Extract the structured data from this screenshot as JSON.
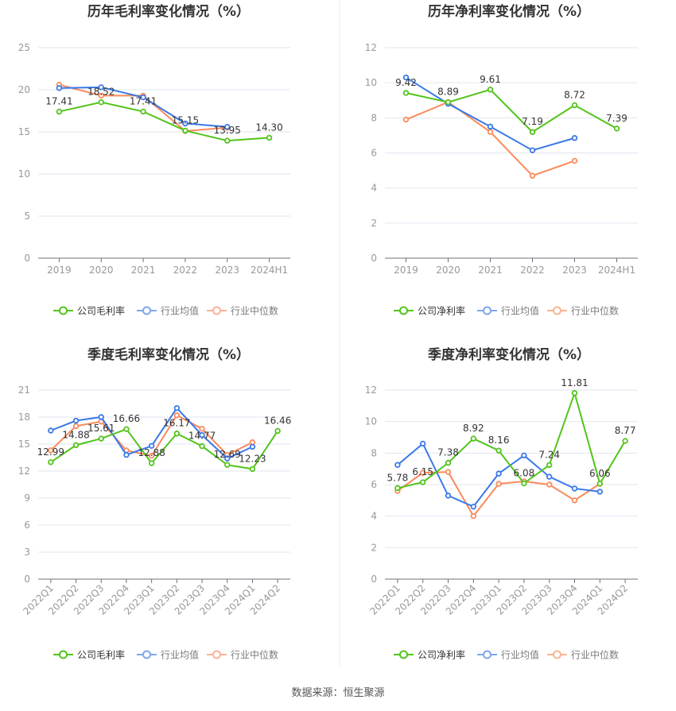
{
  "source_note": "数据来源：恒生聚源",
  "colors": {
    "company": "#52c41a",
    "avg": "#3a78e8",
    "median": "#fa8a5c",
    "grid": "#e0e6f1",
    "axis": "#6e7079",
    "tick": "#999999",
    "label": "#333333"
  },
  "chart_data": [
    {
      "type": "line",
      "title": "历年毛利率变化情况（%）",
      "categories": [
        "2019",
        "2020",
        "2021",
        "2022",
        "2023",
        "2024H1"
      ],
      "ylim": [
        0,
        25
      ],
      "yticks": [
        0,
        5,
        10,
        15,
        20,
        25
      ],
      "grid": true,
      "legend": "bottom",
      "series": [
        {
          "name": "公司毛利率",
          "key": "company",
          "values": [
            17.41,
            18.52,
            17.41,
            15.15,
            13.95,
            14.3
          ],
          "labels": [
            "17.41",
            "18.52",
            "17.41",
            "15.15",
            "13.95",
            "14.30"
          ]
        },
        {
          "name": "行业均值",
          "key": "avg",
          "values": [
            20.2,
            20.3,
            19.1,
            16.0,
            15.6,
            null
          ]
        },
        {
          "name": "行业中位数",
          "key": "median",
          "values": [
            20.6,
            19.3,
            19.3,
            15.1,
            15.5,
            null
          ]
        }
      ]
    },
    {
      "type": "line",
      "title": "历年净利率变化情况（%）",
      "categories": [
        "2019",
        "2020",
        "2021",
        "2022",
        "2023",
        "2024H1"
      ],
      "ylim": [
        0,
        12
      ],
      "yticks": [
        0,
        2,
        4,
        6,
        8,
        10,
        12
      ],
      "grid": true,
      "legend": "bottom",
      "series": [
        {
          "name": "公司净利率",
          "key": "company",
          "values": [
            9.42,
            8.89,
            9.61,
            7.19,
            8.72,
            7.39
          ],
          "labels": [
            "9.42",
            "8.89",
            "9.61",
            "7.19",
            "8.72",
            "7.39"
          ]
        },
        {
          "name": "行业均值",
          "key": "avg",
          "values": [
            10.3,
            8.8,
            7.5,
            6.15,
            6.85,
            null
          ]
        },
        {
          "name": "行业中位数",
          "key": "median",
          "values": [
            7.9,
            8.9,
            7.2,
            4.7,
            5.55,
            null
          ]
        }
      ]
    },
    {
      "type": "line",
      "title": "季度毛利率变化情况（%）",
      "categories": [
        "2022Q1",
        "2022Q2",
        "2022Q3",
        "2022Q4",
        "2023Q1",
        "2023Q2",
        "2023Q3",
        "2023Q4",
        "2024Q1",
        "2024Q2"
      ],
      "ylim": [
        0,
        21
      ],
      "yticks": [
        0,
        3,
        6,
        9,
        12,
        15,
        18,
        21
      ],
      "grid": true,
      "legend": "bottom",
      "series": [
        {
          "name": "公司毛利率",
          "key": "company",
          "values": [
            12.99,
            14.88,
            15.61,
            16.66,
            12.88,
            16.17,
            14.77,
            12.69,
            12.23,
            16.46
          ],
          "labels": [
            "12.99",
            "14.88",
            "15.61",
            "16.66",
            "12.88",
            "16.17",
            "14.77",
            "12.69",
            "12.23",
            "16.46"
          ]
        },
        {
          "name": "行业均值",
          "key": "avg",
          "values": [
            16.5,
            17.6,
            18.0,
            13.8,
            14.8,
            19.0,
            16.0,
            13.4,
            14.7,
            null
          ]
        },
        {
          "name": "行业中位数",
          "key": "median",
          "values": [
            14.3,
            17.0,
            17.5,
            14.3,
            13.7,
            18.2,
            16.7,
            13.8,
            15.2,
            null
          ]
        }
      ]
    },
    {
      "type": "line",
      "title": "季度净利率变化情况（%）",
      "categories": [
        "2022Q1",
        "2022Q2",
        "2022Q3",
        "2022Q4",
        "2023Q1",
        "2023Q2",
        "2023Q3",
        "2023Q4",
        "2024Q1",
        "2024Q2"
      ],
      "ylim": [
        0,
        12
      ],
      "yticks": [
        0,
        2,
        4,
        6,
        8,
        10,
        12
      ],
      "grid": true,
      "legend": "bottom",
      "series": [
        {
          "name": "公司净利率",
          "key": "company",
          "values": [
            5.78,
            6.15,
            7.38,
            8.92,
            8.16,
            6.08,
            7.24,
            11.81,
            6.06,
            8.77
          ],
          "labels": [
            "5.78",
            "6.15",
            "7.38",
            "8.92",
            "8.16",
            "6.08",
            "7.24",
            "11.81",
            "6.06",
            "8.77"
          ]
        },
        {
          "name": "行业均值",
          "key": "avg",
          "values": [
            7.25,
            8.6,
            5.3,
            4.6,
            6.7,
            7.85,
            6.5,
            5.75,
            5.55,
            null
          ]
        },
        {
          "name": "行业中位数",
          "key": "median",
          "values": [
            5.6,
            6.75,
            6.8,
            4.0,
            6.05,
            6.2,
            6.0,
            5.0,
            6.05,
            null
          ]
        }
      ]
    }
  ]
}
